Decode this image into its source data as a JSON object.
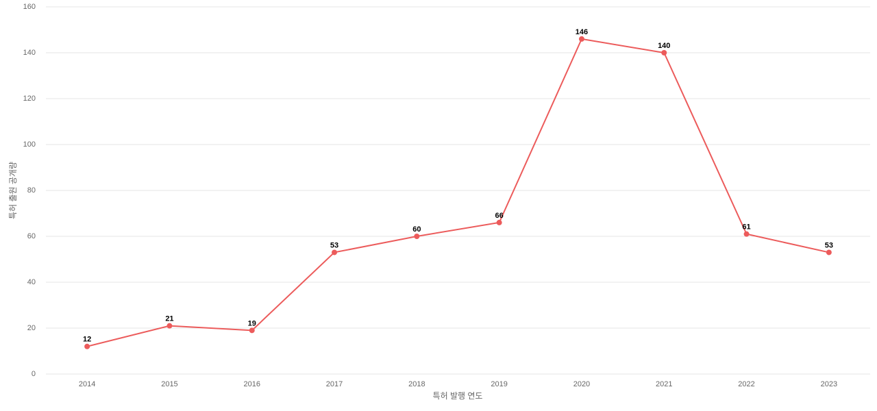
{
  "chart_data": {
    "type": "line",
    "x_label": "특허 발행 연도",
    "y_label": "특허 출원 공개량",
    "categories": [
      "2014",
      "2015",
      "2016",
      "2017",
      "2018",
      "2019",
      "2020",
      "2021",
      "2022",
      "2023"
    ],
    "values": [
      12,
      21,
      19,
      53,
      60,
      66,
      146,
      140,
      61,
      53
    ],
    "color": "#ec5b5b",
    "ylim": [
      0,
      160
    ],
    "yticks": [
      0,
      20,
      40,
      60,
      80,
      100,
      120,
      140,
      160
    ],
    "grid": true
  }
}
